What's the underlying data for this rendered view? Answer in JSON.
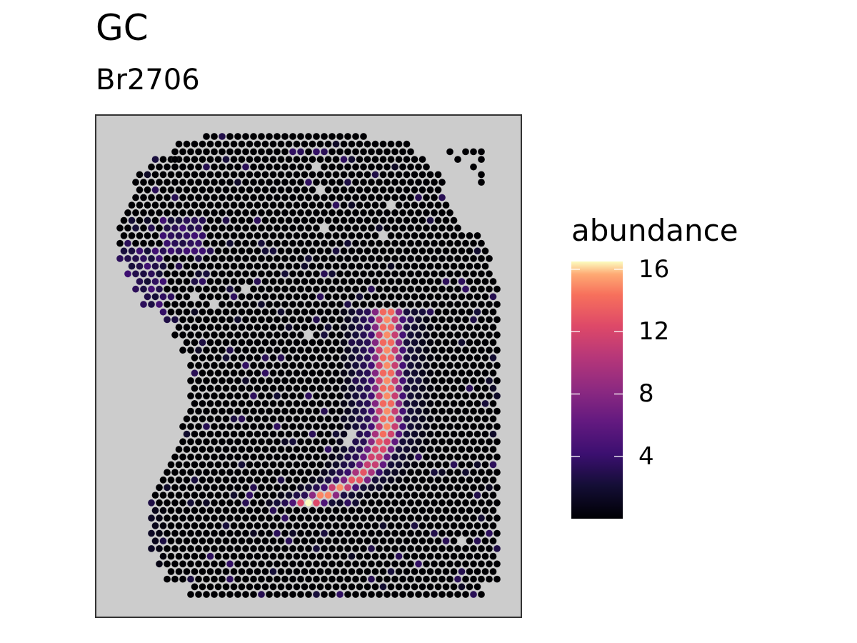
{
  "chart_data": {
    "type": "scatter",
    "title": "GC",
    "subtitle": "Br2706",
    "legend": {
      "title": "abundance",
      "ticks": [
        4,
        8,
        12,
        16
      ],
      "range": [
        0,
        16.5
      ],
      "placement": "right",
      "colormap": "magma"
    },
    "panel_background": "#cccccc",
    "grid": false,
    "x_range": [
      0,
      50
    ],
    "y_range": [
      0,
      60
    ],
    "tissue_rows": [
      [
        0,
        10,
        47
      ],
      [
        2,
        7,
        49
      ],
      [
        4,
        6,
        49
      ],
      [
        6,
        5,
        49
      ],
      [
        8,
        5,
        49
      ],
      [
        10,
        5,
        49
      ],
      [
        12,
        5,
        49
      ],
      [
        14,
        6,
        49
      ],
      [
        16,
        7,
        49
      ],
      [
        18,
        8,
        49
      ],
      [
        20,
        9,
        49
      ],
      [
        22,
        9,
        49
      ],
      [
        24,
        10,
        49
      ],
      [
        26,
        10,
        49
      ],
      [
        28,
        10,
        49
      ],
      [
        30,
        10,
        49
      ],
      [
        32,
        9,
        49
      ],
      [
        34,
        8,
        49
      ],
      [
        36,
        6,
        49
      ],
      [
        38,
        4,
        49
      ],
      [
        40,
        3,
        49
      ],
      [
        42,
        2,
        48
      ],
      [
        44,
        1,
        48
      ],
      [
        46,
        1,
        47
      ],
      [
        48,
        1,
        44
      ],
      [
        50,
        2,
        43
      ],
      [
        52,
        3,
        42
      ],
      [
        54,
        3,
        42
      ],
      [
        56,
        5,
        40
      ],
      [
        58,
        8,
        38
      ],
      [
        60,
        12,
        32
      ]
    ],
    "extra_spots": [
      [
        43,
        58
      ],
      [
        44,
        57
      ],
      [
        45,
        58
      ],
      [
        46,
        58
      ],
      [
        47,
        57
      ],
      [
        47,
        58
      ],
      [
        46,
        56
      ],
      [
        47,
        55
      ],
      [
        47,
        54
      ],
      [
        8,
        57
      ],
      [
        8,
        56
      ]
    ],
    "missing_spots": [
      [
        27,
        53
      ],
      [
        26,
        56
      ],
      [
        36,
        51
      ],
      [
        27,
        48
      ],
      [
        35,
        47
      ],
      [
        17,
        40
      ],
      [
        11,
        39
      ],
      [
        6,
        36
      ],
      [
        13,
        38
      ],
      [
        30,
        20
      ],
      [
        31,
        21
      ],
      [
        45,
        7
      ],
      [
        25,
        34
      ]
    ],
    "band_center": [
      [
        22,
        35
      ],
      [
        19,
        34
      ],
      [
        17,
        33
      ],
      [
        15,
        31
      ],
      [
        14,
        29
      ],
      [
        13,
        27
      ],
      [
        12,
        25
      ],
      [
        12,
        22
      ],
      [
        12,
        19
      ],
      [
        13,
        16
      ],
      [
        14,
        13
      ],
      [
        15,
        10
      ],
      [
        16,
        7
      ],
      [
        17,
        4
      ],
      [
        19,
        1
      ]
    ],
    "band_peak": [
      [
        22,
        15
      ],
      [
        19,
        13
      ],
      [
        17,
        12
      ],
      [
        15,
        14
      ],
      [
        14,
        15
      ],
      [
        13,
        16
      ],
      [
        12,
        16.5
      ],
      [
        12,
        16
      ],
      [
        12,
        15
      ],
      [
        13,
        14
      ],
      [
        14,
        13
      ],
      [
        15,
        12
      ],
      [
        16,
        11
      ],
      [
        17,
        13
      ],
      [
        19,
        15
      ]
    ]
  }
}
